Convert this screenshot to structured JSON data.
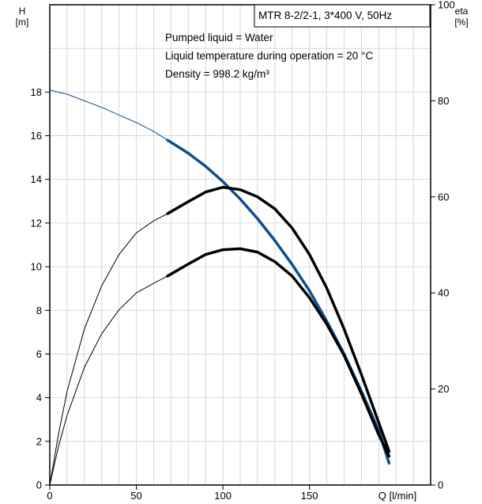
{
  "chart_data": {
    "type": "line",
    "title": "MTR 8-2/2-1, 3*400 V, 50Hz",
    "annotations": [
      "Pumped liquid = Water",
      "Liquid temperature during operation = 20 °C",
      "Density = 998.2 kg/m³"
    ],
    "x_axis": {
      "label": "Q [l/min]",
      "range": [
        0,
        220
      ],
      "ticks": [
        0,
        50,
        100,
        150
      ]
    },
    "y_axis_left": {
      "label_line1": "H",
      "label_line2": "[m]",
      "range": [
        0,
        22
      ],
      "ticks": [
        0,
        2,
        4,
        6,
        8,
        10,
        12,
        14,
        16,
        18
      ]
    },
    "y_axis_right": {
      "label_line1": "eta",
      "label_line2": "[%]",
      "range": [
        0,
        100
      ],
      "ticks": [
        0,
        20,
        40,
        60,
        80,
        100
      ]
    },
    "grid": true,
    "series": [
      {
        "axis": "left",
        "color": "#0d4f8b",
        "x": [
          0,
          10,
          20,
          30,
          40,
          50,
          60,
          68,
          80,
          90,
          100,
          110,
          120,
          130,
          140,
          150,
          160,
          170,
          180,
          190,
          196
        ],
        "values": [
          18.1,
          17.9,
          17.6,
          17.3,
          16.95,
          16.6,
          16.2,
          15.8,
          15.2,
          14.6,
          13.9,
          13.1,
          12.2,
          11.2,
          10.1,
          8.9,
          7.5,
          6.0,
          4.3,
          2.5,
          1.0
        ],
        "operating_range": [
          68,
          196
        ]
      },
      {
        "axis": "right",
        "color": "#000000",
        "x": [
          0,
          5,
          10,
          20,
          30,
          40,
          50,
          60,
          68,
          80,
          90,
          100,
          110,
          120,
          130,
          140,
          150,
          160,
          170,
          180,
          190,
          196
        ],
        "values": [
          0,
          10.5,
          19.5,
          32.5,
          41.5,
          48,
          52.5,
          55,
          56.5,
          59,
          61,
          62,
          61.5,
          60,
          57.5,
          53.5,
          48,
          41,
          32.5,
          23,
          13,
          7
        ],
        "operating_range": [
          68,
          196
        ]
      },
      {
        "axis": "right",
        "color": "#000000",
        "x": [
          0,
          5,
          10,
          20,
          30,
          40,
          50,
          60,
          68,
          80,
          90,
          100,
          110,
          120,
          130,
          140,
          150,
          160,
          170,
          180,
          190,
          196
        ],
        "values": [
          0,
          8,
          14.5,
          24.5,
          31.5,
          36.5,
          40,
          42,
          43.5,
          46,
          48,
          49,
          49.2,
          48.5,
          46.5,
          43.5,
          39,
          33.5,
          27,
          19,
          10.5,
          6
        ],
        "operating_range": [
          68,
          196
        ]
      }
    ]
  }
}
